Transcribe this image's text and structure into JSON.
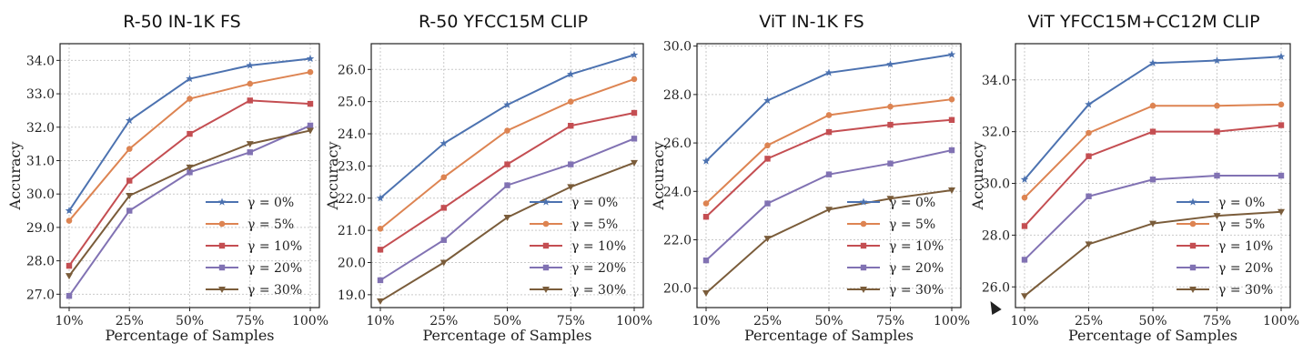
{
  "chart_data": [
    {
      "type": "line",
      "title": "R-50 IN-1K FS",
      "xlabel": "Percentage of Samples",
      "ylabel": "Accuracy",
      "categories": [
        "10%",
        "25%",
        "50%",
        "75%",
        "100%"
      ],
      "yticks": [
        27.0,
        28.0,
        29.0,
        30.0,
        31.0,
        32.0,
        33.0,
        34.0
      ],
      "ylim": [
        26.6,
        34.5
      ],
      "grid": true,
      "legend": "bottom-right",
      "series": [
        {
          "name": "γ = 0%",
          "color": "#4c72b0",
          "marker": "star",
          "values": [
            29.5,
            32.2,
            33.45,
            33.85,
            34.05
          ]
        },
        {
          "name": "γ = 5%",
          "color": "#dd8452",
          "marker": "circle",
          "values": [
            29.2,
            31.35,
            32.85,
            33.3,
            33.65
          ]
        },
        {
          "name": "γ = 10%",
          "color": "#c44e52",
          "marker": "square",
          "values": [
            27.85,
            30.4,
            31.8,
            32.8,
            32.7
          ]
        },
        {
          "name": "γ = 20%",
          "color": "#8172b3",
          "marker": "square",
          "values": [
            26.95,
            29.5,
            30.65,
            31.25,
            32.05
          ]
        },
        {
          "name": "γ = 30%",
          "color": "#7a5c3a",
          "marker": "triangle",
          "values": [
            27.55,
            29.95,
            30.8,
            31.5,
            31.9
          ]
        }
      ]
    },
    {
      "type": "line",
      "title": "R-50 YFCC15M CLIP",
      "xlabel": "Percentage of Samples",
      "ylabel": "Accuracy",
      "categories": [
        "10%",
        "25%",
        "50%",
        "75%",
        "100%"
      ],
      "yticks": [
        19.0,
        20.0,
        21.0,
        22.0,
        23.0,
        24.0,
        25.0,
        26.0
      ],
      "ylim": [
        18.6,
        26.8
      ],
      "grid": true,
      "legend": "bottom-right",
      "series": [
        {
          "name": "γ = 0%",
          "color": "#4c72b0",
          "marker": "star",
          "values": [
            22.0,
            23.7,
            24.9,
            25.85,
            26.45
          ]
        },
        {
          "name": "γ = 5%",
          "color": "#dd8452",
          "marker": "circle",
          "values": [
            21.05,
            22.65,
            24.1,
            25.0,
            25.7
          ]
        },
        {
          "name": "γ = 10%",
          "color": "#c44e52",
          "marker": "square",
          "values": [
            20.4,
            21.7,
            23.05,
            24.25,
            24.65
          ]
        },
        {
          "name": "γ = 20%",
          "color": "#8172b3",
          "marker": "square",
          "values": [
            19.45,
            20.7,
            22.4,
            23.05,
            23.85
          ]
        },
        {
          "name": "γ = 30%",
          "color": "#7a5c3a",
          "marker": "triangle",
          "values": [
            18.8,
            20.0,
            21.4,
            22.35,
            23.1
          ]
        }
      ]
    },
    {
      "type": "line",
      "title": "ViT IN-1K FS",
      "xlabel": "Percentage of Samples",
      "ylabel": "Accuracy",
      "categories": [
        "10%",
        "25%",
        "50%",
        "75%",
        "100%"
      ],
      "yticks": [
        20.0,
        22.0,
        24.0,
        26.0,
        28.0,
        30.0
      ],
      "ylim": [
        19.2,
        30.1
      ],
      "grid": true,
      "legend": "bottom-right",
      "series": [
        {
          "name": "γ = 0%",
          "color": "#4c72b0",
          "marker": "star",
          "values": [
            25.25,
            27.75,
            28.9,
            29.25,
            29.65
          ]
        },
        {
          "name": "γ = 5%",
          "color": "#dd8452",
          "marker": "circle",
          "values": [
            23.5,
            25.9,
            27.15,
            27.5,
            27.8
          ]
        },
        {
          "name": "γ = 10%",
          "color": "#c44e52",
          "marker": "square",
          "values": [
            22.95,
            25.35,
            26.45,
            26.75,
            26.95
          ]
        },
        {
          "name": "γ = 20%",
          "color": "#8172b3",
          "marker": "square",
          "values": [
            21.15,
            23.5,
            24.7,
            25.15,
            25.7
          ]
        },
        {
          "name": "γ = 30%",
          "color": "#7a5c3a",
          "marker": "triangle",
          "values": [
            19.8,
            22.05,
            23.25,
            23.7,
            24.05
          ]
        }
      ]
    },
    {
      "type": "line",
      "title": "ViT YFCC15M+CC12M CLIP",
      "xlabel": "Percentage of Samples",
      "ylabel": "Accuracy",
      "categories": [
        "10%",
        "25%",
        "50%",
        "75%",
        "100%"
      ],
      "yticks": [
        26.0,
        28.0,
        30.0,
        32.0,
        34.0
      ],
      "ylim": [
        25.2,
        35.4
      ],
      "grid": true,
      "legend": "bottom-right",
      "series": [
        {
          "name": "γ = 0%",
          "color": "#4c72b0",
          "marker": "star",
          "values": [
            30.15,
            33.05,
            34.65,
            34.75,
            34.9
          ]
        },
        {
          "name": "γ = 5%",
          "color": "#dd8452",
          "marker": "circle",
          "values": [
            29.45,
            31.95,
            33.0,
            33.0,
            33.05
          ]
        },
        {
          "name": "γ = 10%",
          "color": "#c44e52",
          "marker": "square",
          "values": [
            28.35,
            31.05,
            32.0,
            32.0,
            32.25
          ]
        },
        {
          "name": "γ = 20%",
          "color": "#8172b3",
          "marker": "square",
          "values": [
            27.05,
            29.5,
            30.15,
            30.3,
            30.3
          ]
        },
        {
          "name": "γ = 30%",
          "color": "#7a5c3a",
          "marker": "triangle",
          "values": [
            25.65,
            27.65,
            28.45,
            28.75,
            28.9
          ]
        }
      ]
    }
  ]
}
